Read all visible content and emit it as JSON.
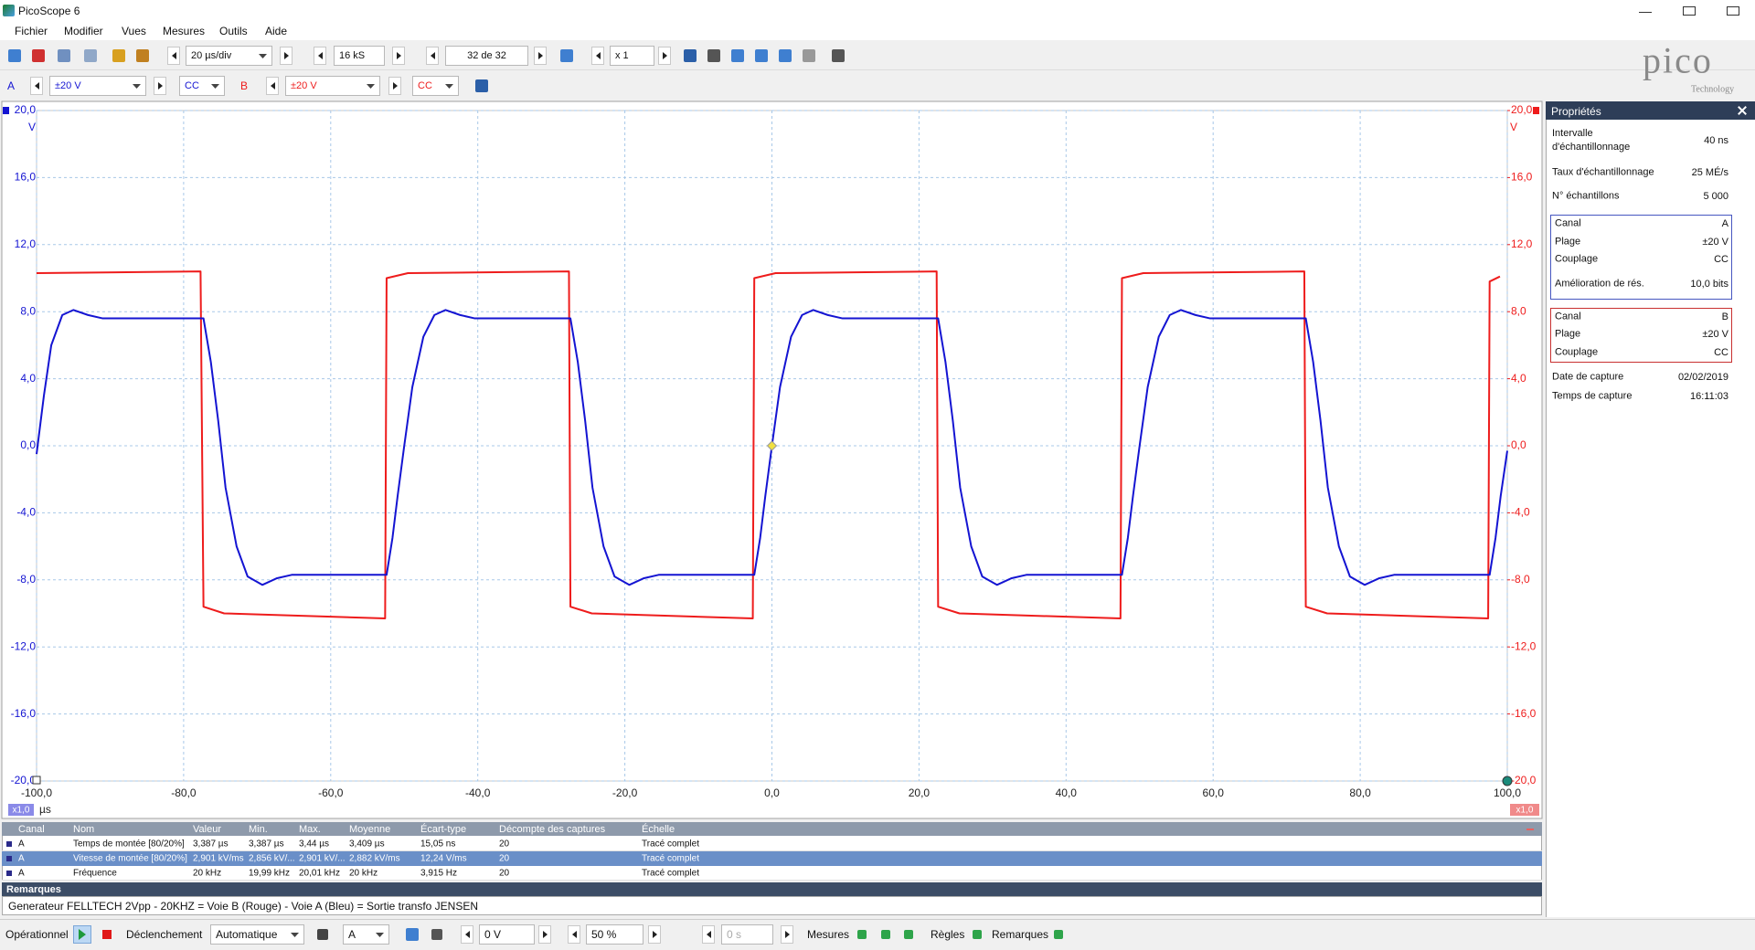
{
  "window": {
    "title": "PicoScope 6"
  },
  "menu": [
    "Fichier",
    "Modifier",
    "Vues",
    "Mesures",
    "Outils",
    "Aide"
  ],
  "toolbar": {
    "timebase": "20 µs/div",
    "samples": "16 kS",
    "capture": "32 de 32",
    "zoom": "x 1"
  },
  "channels": {
    "a": {
      "range": "±20 V",
      "coupling": "CC"
    },
    "b": {
      "range": "±20 V",
      "coupling": "CC"
    }
  },
  "logo": {
    "name": "pico",
    "tagline": "Technology"
  },
  "chart_data": {
    "type": "line",
    "x_unit": "µs",
    "y_unit": "V",
    "y2_unit": "V",
    "zoom_badges": [
      "x1,0",
      "x1,0"
    ],
    "series": [
      {
        "name": "A",
        "color": "#1414d2",
        "x": [
          -100,
          -99,
          -98,
          -96.5,
          -95,
          -93,
          -91,
          -77.3,
          -76.3,
          -75.3,
          -74.3,
          -72.8,
          -71.3,
          -69.3,
          -67.3,
          -65.3,
          -52.4,
          -51.6,
          -50.9,
          -50,
          -48.9,
          -47.4,
          -45.9,
          -44.4,
          -42.4,
          -40.4,
          -27.4,
          -26.4,
          -25.4,
          -24.4,
          -22.9,
          -21.4,
          -19.4,
          -17.4,
          -15.4,
          -2.4,
          -1.6,
          -0.9,
          0,
          1.1,
          2.6,
          4.1,
          5.6,
          7.6,
          9.6,
          22.6,
          23.6,
          24.6,
          25.6,
          27.1,
          28.6,
          30.6,
          32.6,
          34.6,
          47.6,
          48.4,
          49.1,
          50,
          51.1,
          52.6,
          54.1,
          55.6,
          57.6,
          59.6,
          72.6,
          73.6,
          74.6,
          75.6,
          77.1,
          78.6,
          80.6,
          82.6,
          84.6,
          97.6,
          98.4,
          99.1,
          100
        ],
        "values": [
          -0.5,
          3,
          6,
          7.8,
          8.1,
          7.8,
          7.6,
          7.6,
          5,
          1.5,
          -2.5,
          -6,
          -7.8,
          -8.3,
          -7.9,
          -7.7,
          -7.7,
          -5.5,
          -3,
          0,
          3.5,
          6.5,
          7.8,
          8.1,
          7.8,
          7.6,
          7.6,
          5,
          1.5,
          -2.5,
          -6,
          -7.8,
          -8.3,
          -7.9,
          -7.7,
          -7.7,
          -5.5,
          -3,
          0,
          3.5,
          6.5,
          7.8,
          8.1,
          7.8,
          7.6,
          7.6,
          5,
          1.5,
          -2.5,
          -6,
          -7.8,
          -8.3,
          -7.9,
          -7.7,
          -7.7,
          -5.5,
          -3,
          0,
          3.5,
          6.5,
          7.8,
          8.1,
          7.8,
          7.6,
          7.6,
          5,
          1.5,
          -2.5,
          -6,
          -7.8,
          -8.3,
          -7.9,
          -7.7,
          -7.7,
          -5.5,
          -3,
          -0.3
        ]
      },
      {
        "name": "B",
        "color": "#ee1c1c",
        "axis": "y2",
        "x": [
          -100,
          -77.7,
          -77.3,
          -74.5,
          -52.6,
          -52.4,
          -49.5,
          -27.6,
          -27.4,
          -24.5,
          -2.6,
          -2.4,
          0.5,
          22.4,
          22.6,
          25.5,
          47.4,
          47.6,
          50.5,
          72.4,
          72.6,
          75.5,
          97.4,
          97.6,
          99
        ],
        "values": [
          10.3,
          10.4,
          -9.6,
          -10,
          -10.3,
          10,
          10.3,
          10.4,
          -9.6,
          -10,
          -10.3,
          10,
          10.3,
          10.4,
          -9.6,
          -10,
          -10.3,
          10,
          10.3,
          10.4,
          -9.6,
          -10,
          -10.3,
          9.8,
          10.1
        ]
      }
    ],
    "trigger": {
      "x": 0,
      "y": 0
    },
    "xlim": [
      -100,
      100
    ],
    "xticks": [
      {
        "value": -100,
        "label": "-100,0"
      },
      {
        "value": -80,
        "label": "-80,0"
      },
      {
        "value": -60,
        "label": "-60,0"
      },
      {
        "value": -40,
        "label": "-40,0"
      },
      {
        "value": -20,
        "label": "-20,0"
      },
      {
        "value": 0,
        "label": "0,0"
      },
      {
        "value": 20,
        "label": "20,0"
      },
      {
        "value": 40,
        "label": "40,0"
      },
      {
        "value": 60,
        "label": "60,0"
      },
      {
        "value": 80,
        "label": "80,0"
      },
      {
        "value": 100,
        "label": "100,0"
      }
    ],
    "ylim": [
      -20,
      20
    ],
    "yticks": [
      {
        "value": 20,
        "label": "20,0"
      },
      {
        "value": 16,
        "label": "16,0"
      },
      {
        "value": 12,
        "label": "12,0"
      },
      {
        "value": 8,
        "label": "8,0"
      },
      {
        "value": 4,
        "label": "4,0"
      },
      {
        "value": 0,
        "label": "0,0"
      },
      {
        "value": -4,
        "label": "-4,0"
      },
      {
        "value": -8,
        "label": "-8,0"
      },
      {
        "value": -12,
        "label": "-12,0"
      },
      {
        "value": -16,
        "label": "-16,0"
      },
      {
        "value": -20,
        "label": "-20,0"
      }
    ],
    "y2lim": [
      -20,
      20
    ],
    "y2ticks": [
      {
        "value": 20,
        "label": "20,0"
      },
      {
        "value": 16,
        "label": "16,0"
      },
      {
        "value": 12,
        "label": "12,0"
      },
      {
        "value": 8,
        "label": "8,0"
      },
      {
        "value": 4,
        "label": "4,0"
      },
      {
        "value": 0,
        "label": "0,0"
      },
      {
        "value": -4,
        "label": "-4,0"
      },
      {
        "value": -8,
        "label": "-8,0"
      },
      {
        "value": -12,
        "label": "-12,0"
      },
      {
        "value": -16,
        "label": "-16,0"
      },
      {
        "value": -20,
        "label": "-20,0"
      }
    ],
    "grid": true
  },
  "properties": {
    "title": "Propriétés",
    "general": [
      {
        "key": "Intervalle d'échantillonnage",
        "value": "40 ns"
      },
      {
        "key": "Taux d'échantillonnage",
        "value": "25 MÉ/s"
      },
      {
        "key": "N° échantillons",
        "value": "5 000"
      }
    ],
    "channel_a": [
      {
        "key": "Canal",
        "value": "A"
      },
      {
        "key": "Plage",
        "value": "±20 V"
      },
      {
        "key": "Couplage",
        "value": "CC"
      },
      {
        "key": "Amélioration de rés.",
        "value": "10,0 bits"
      }
    ],
    "channel_b": [
      {
        "key": "Canal",
        "value": "B"
      },
      {
        "key": "Plage",
        "value": "±20 V"
      },
      {
        "key": "Couplage",
        "value": "CC"
      }
    ],
    "capture": [
      {
        "key": "Date de capture",
        "value": "02/02/2019"
      },
      {
        "key": "Temps de capture",
        "value": "16:11:03"
      }
    ]
  },
  "measurements": {
    "columns": [
      "Canal",
      "Nom",
      "Valeur",
      "Min.",
      "Max.",
      "Moyenne",
      "Écart-type",
      "Décompte des captures",
      "Échelle"
    ],
    "rows": [
      [
        "A",
        "Temps de montée [80/20%]",
        "3,387 µs",
        "3,387 µs",
        "3,44 µs",
        "3,409 µs",
        "15,05 ns",
        "20",
        "Tracé complet"
      ],
      [
        "A",
        "Vitesse de montée [80/20%]",
        "2,901 kV/ms",
        "2,856 kV/...",
        "2,901 kV/...",
        "2,882 kV/ms",
        "12,24 V/ms",
        "20",
        "Tracé complet"
      ],
      [
        "A",
        "Fréquence",
        "20 kHz",
        "19,99 kHz",
        "20,01 kHz",
        "20 kHz",
        "3,915 Hz",
        "20",
        "Tracé complet"
      ]
    ],
    "selected_row": 1
  },
  "remarks": {
    "title": "Remarques",
    "text": "Generateur FELLTECH 2Vpp - 20KHZ = Voie B (Rouge) - Voie A (Bleu) = Sortie transfo JENSEN"
  },
  "status": {
    "state": "Opérationnel",
    "trigger_label": "Déclenchement",
    "trigger_mode": "Automatique",
    "trigger_channel": "A",
    "trigger_level": "0 V",
    "pre_trigger": "50 %",
    "delay": "0 s",
    "measures": "Mesures",
    "rulers": "Règles",
    "notes": "Remarques"
  }
}
